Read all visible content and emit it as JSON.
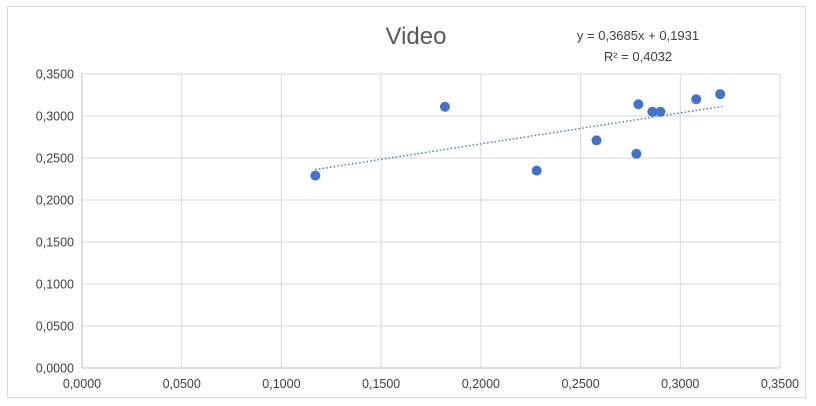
{
  "chart_data": {
    "type": "scatter",
    "title": "Video",
    "trendline": {
      "equation": "y = 0,3685x + 0,1931",
      "r_squared": "R² = 0,4032",
      "slope": 0.3685,
      "intercept": 0.1931,
      "x_range": [
        0.117,
        0.321
      ]
    },
    "xlim": [
      0,
      0.35
    ],
    "ylim": [
      0,
      0.35
    ],
    "x_ticks": [
      "0,0000",
      "0,0500",
      "0,1000",
      "0,1500",
      "0,2000",
      "0,2500",
      "0,3000",
      "0,3500"
    ],
    "y_ticks": [
      "0,0000",
      "0,0500",
      "0,1000",
      "0,1500",
      "0,2000",
      "0,2500",
      "0,3000",
      "0,3500"
    ],
    "grid": true,
    "marker_color": "#4472c4",
    "points": [
      {
        "x": 0.117,
        "y": 0.229
      },
      {
        "x": 0.182,
        "y": 0.311
      },
      {
        "x": 0.228,
        "y": 0.235
      },
      {
        "x": 0.258,
        "y": 0.271
      },
      {
        "x": 0.278,
        "y": 0.255
      },
      {
        "x": 0.279,
        "y": 0.314
      },
      {
        "x": 0.286,
        "y": 0.305
      },
      {
        "x": 0.29,
        "y": 0.305
      },
      {
        "x": 0.308,
        "y": 0.32
      },
      {
        "x": 0.32,
        "y": 0.326
      }
    ]
  }
}
